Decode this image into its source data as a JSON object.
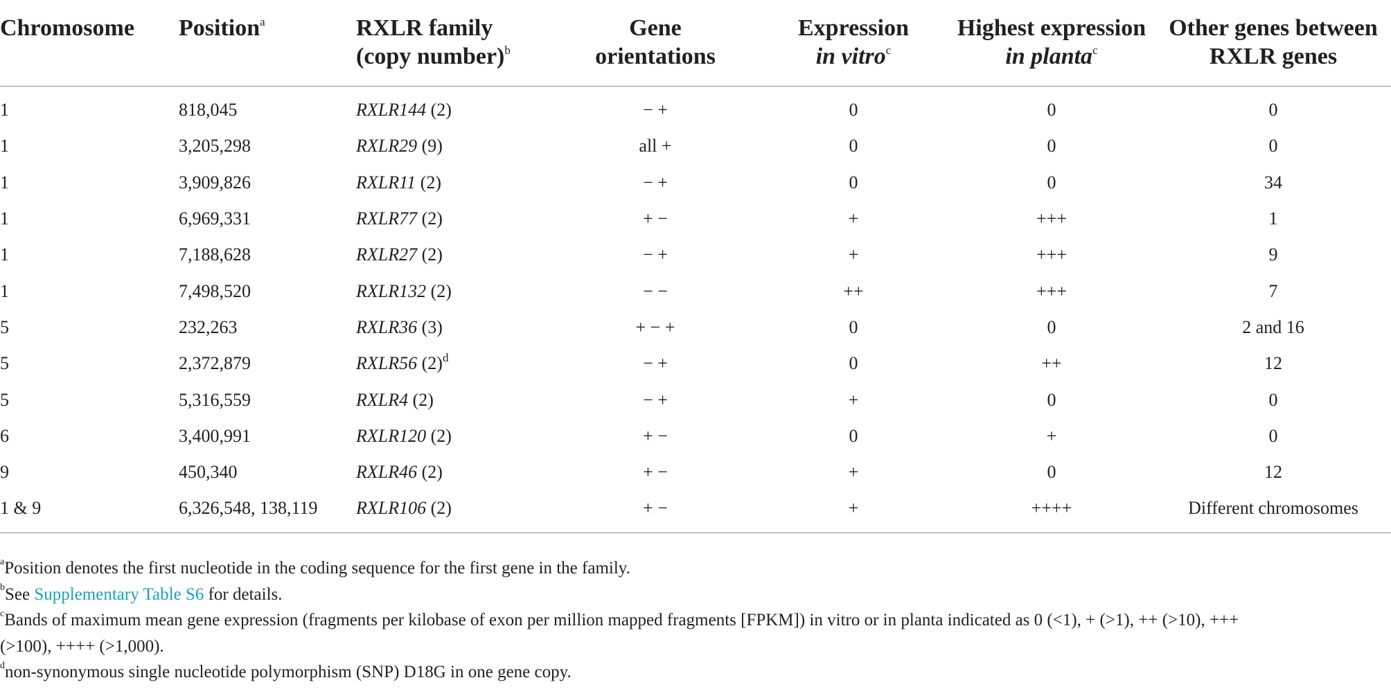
{
  "table": {
    "headers": [
      {
        "lines": [
          "Chromosome"
        ],
        "sup": ""
      },
      {
        "lines": [
          "Position"
        ],
        "sup": "a"
      },
      {
        "lines": [
          "RXLR family",
          "(copy number)"
        ],
        "sup": "b"
      },
      {
        "lines": [
          "Gene",
          "orientations"
        ],
        "sup": ""
      },
      {
        "lines": [
          "Expression",
          "in vitro"
        ],
        "sup": "c"
      },
      {
        "lines": [
          "Highest expression",
          "in planta"
        ],
        "sup": "c"
      },
      {
        "lines": [
          "Other genes between",
          "RXLR genes"
        ],
        "sup": ""
      }
    ],
    "rows": [
      {
        "chromosome": "1",
        "position": "818,045",
        "family": "RXLR144",
        "copies": "(2)",
        "sup": "",
        "orientation": "− +",
        "in_vitro": "0",
        "in_planta": "0",
        "other_genes": "0"
      },
      {
        "chromosome": "1",
        "position": "3,205,298",
        "family": "RXLR29",
        "copies": "(9)",
        "sup": "",
        "orientation": "all +",
        "in_vitro": "0",
        "in_planta": "0",
        "other_genes": "0"
      },
      {
        "chromosome": "1",
        "position": "3,909,826",
        "family": "RXLR11",
        "copies": "(2)",
        "sup": "",
        "orientation": "− +",
        "in_vitro": "0",
        "in_planta": "0",
        "other_genes": "34"
      },
      {
        "chromosome": "1",
        "position": "6,969,331",
        "family": "RXLR77",
        "copies": "(2)",
        "sup": "",
        "orientation": "+ −",
        "in_vitro": "+",
        "in_planta": "+++",
        "other_genes": "1"
      },
      {
        "chromosome": "1",
        "position": "7,188,628",
        "family": "RXLR27",
        "copies": "(2)",
        "sup": "",
        "orientation": "− +",
        "in_vitro": "+",
        "in_planta": "+++",
        "other_genes": "9"
      },
      {
        "chromosome": "1",
        "position": "7,498,520",
        "family": "RXLR132",
        "copies": "(2)",
        "sup": "",
        "orientation": "− −",
        "in_vitro": "++",
        "in_planta": "+++",
        "other_genes": "7"
      },
      {
        "chromosome": "5",
        "position": "232,263",
        "family": "RXLR36",
        "copies": "(3)",
        "sup": "",
        "orientation": "+ − +",
        "in_vitro": "0",
        "in_planta": "0",
        "other_genes": "2 and 16"
      },
      {
        "chromosome": "5",
        "position": "2,372,879",
        "family": "RXLR56",
        "copies": "(2)",
        "sup": "d",
        "orientation": "− +",
        "in_vitro": "0",
        "in_planta": "++",
        "other_genes": "12"
      },
      {
        "chromosome": "5",
        "position": "5,316,559",
        "family": "RXLR4",
        "copies": "(2)",
        "sup": "",
        "orientation": "− +",
        "in_vitro": "+",
        "in_planta": "0",
        "other_genes": "0"
      },
      {
        "chromosome": "6",
        "position": "3,400,991",
        "family": "RXLR120",
        "copies": "(2)",
        "sup": "",
        "orientation": "+ −",
        "in_vitro": "0",
        "in_planta": "+",
        "other_genes": "0"
      },
      {
        "chromosome": "9",
        "position": "450,340",
        "family": "RXLR46",
        "copies": "(2)",
        "sup": "",
        "orientation": "+ −",
        "in_vitro": "+",
        "in_planta": "0",
        "other_genes": "12"
      },
      {
        "chromosome": "1 & 9",
        "position": "6,326,548, 138,119",
        "family": "RXLR106",
        "copies": "(2)",
        "sup": "",
        "orientation": "+ −",
        "in_vitro": "+",
        "in_planta": "++++",
        "other_genes": "Different chromosomes"
      }
    ]
  },
  "footnotes": {
    "a": {
      "mark": "a",
      "text": "Position denotes the first nucleotide in the coding sequence for the first gene in the family."
    },
    "b": {
      "mark": "b",
      "pre": "See ",
      "link": "Supplementary Table S6",
      "post": " for details."
    },
    "c": {
      "mark": "c",
      "line1": "Bands of maximum mean gene expression (fragments per kilobase of exon per million mapped fragments [FPKM]) in vitro or in planta indicated as 0 (<1), + (>1), ++ (>10), +++",
      "line2": "(>100), ++++ (>1,000)."
    },
    "d": {
      "mark": "d",
      "text": "non-synonymous single nucleotide polymorphism (SNP) D18G in one gene copy."
    }
  },
  "colors": {
    "link": "#1aa3b8",
    "rule": "#8a8a8a",
    "text": "#231f20"
  }
}
